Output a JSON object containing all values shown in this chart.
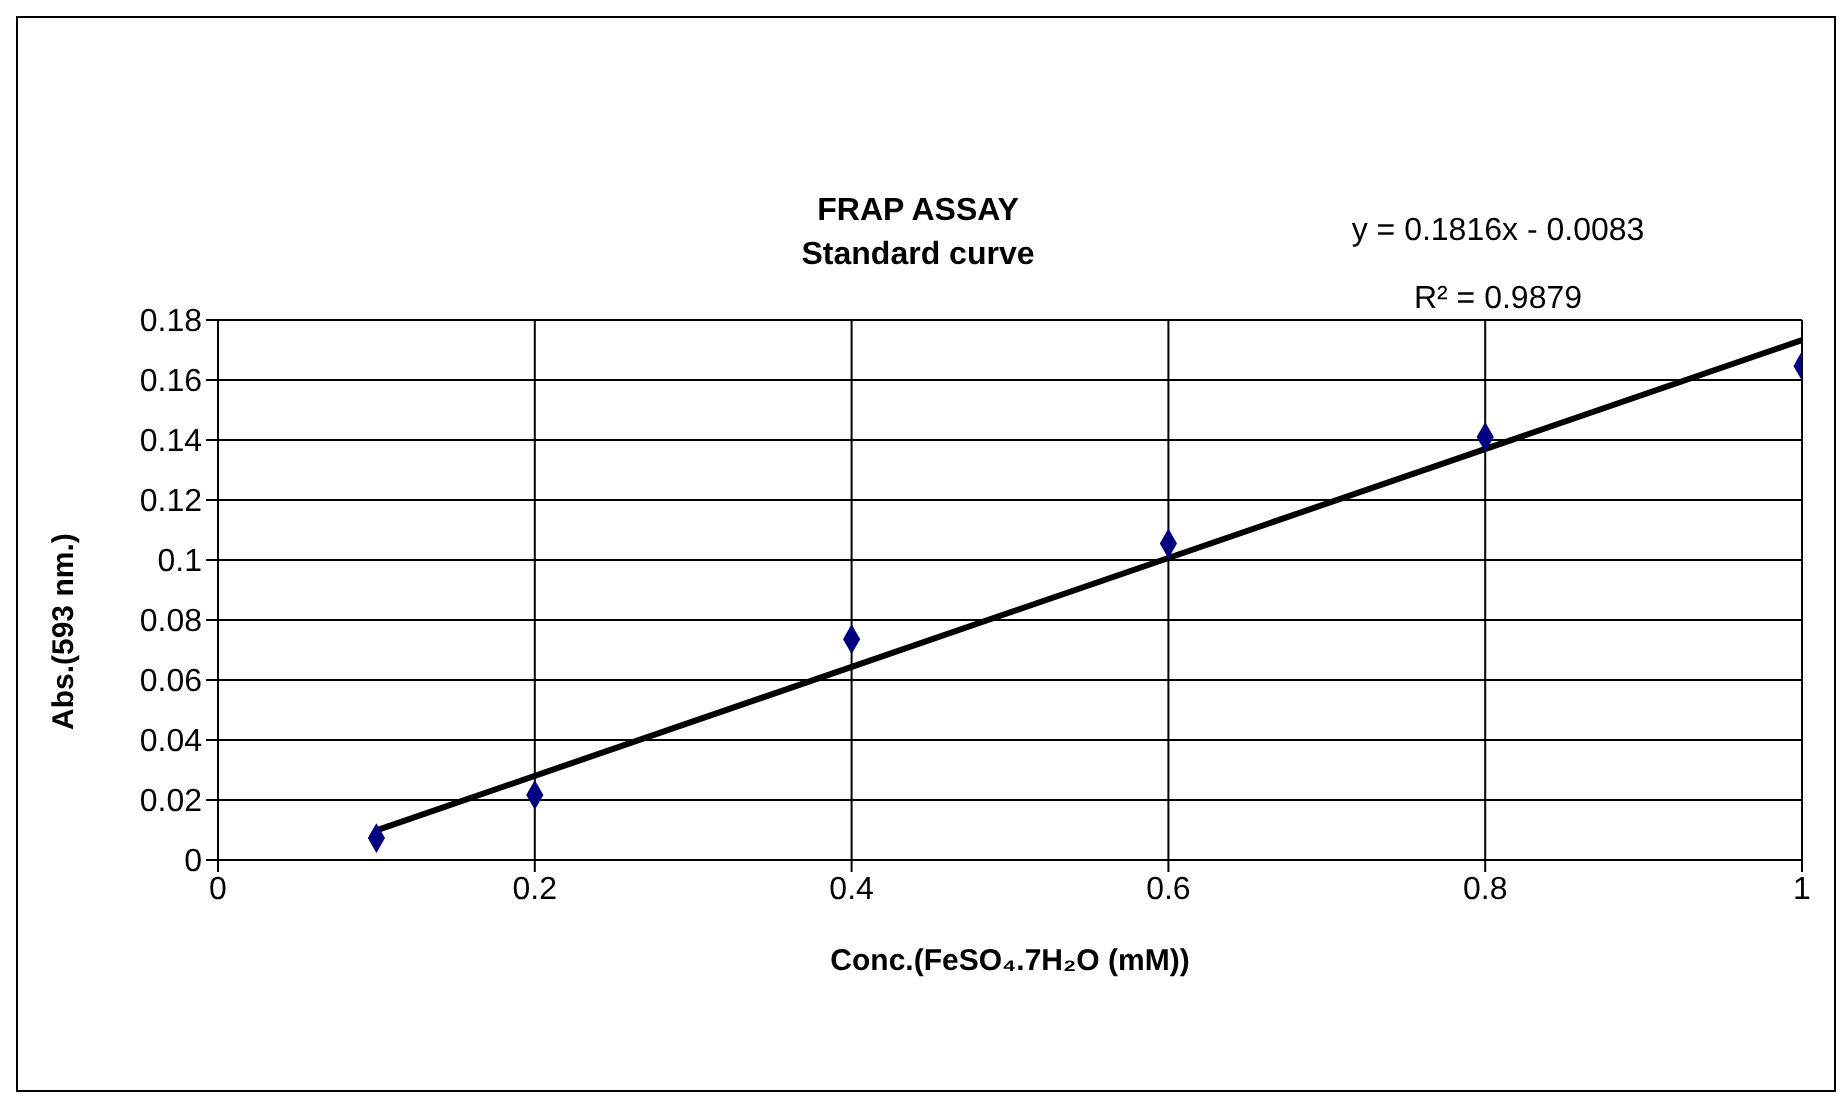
{
  "chart_data": {
    "type": "scatter",
    "title": "FRAP ASSAY",
    "subtitle": "Standard curve",
    "xlabel": "Conc.(FeSO₄.7H₂O (mM))",
    "ylabel": "Abs.(593 nm.)",
    "annotations": [
      "y = 0.1816x - 0.0083",
      "R² = 0.9879"
    ],
    "x": [
      0.1,
      0.2,
      0.4,
      0.6,
      0.8,
      1
    ],
    "series": [
      {
        "color": "#000080",
        "marker": "diamond",
        "values": [
          0.0073,
          0.0217,
          0.0736,
          0.1055,
          0.141,
          0.1647
        ]
      },
      {
        "type": "line",
        "marker": "none",
        "color": "#000000",
        "x": [
          0.1,
          1
        ],
        "values": [
          0.0099,
          0.1733
        ]
      }
    ],
    "xlim": [
      0,
      1
    ],
    "xticks": [
      0,
      0.2,
      0.4,
      0.6,
      0.8,
      1
    ],
    "ylim": [
      0,
      0.18
    ],
    "yticks": [
      0,
      0.02,
      0.04,
      0.06,
      0.08,
      0.1,
      0.12,
      0.14,
      0.16,
      0.18
    ],
    "grid": true,
    "line_style": "solid"
  }
}
